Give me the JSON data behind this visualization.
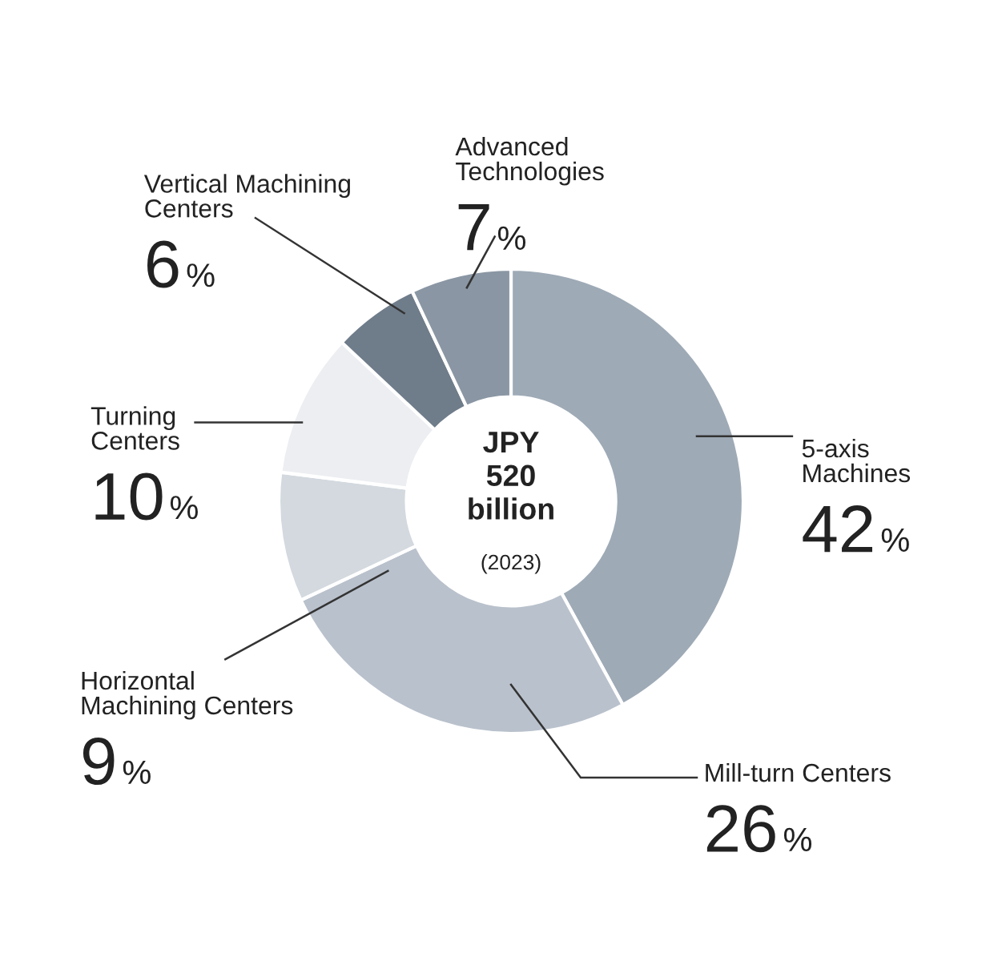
{
  "chart_data": {
    "type": "donut",
    "title": "JPY\n520\nbillion",
    "subtitle": "(2023)",
    "categories": [
      "5-axis\nMachines",
      "Mill-turn Centers",
      "Horizontal\nMachining Centers",
      "Turning\nCenters",
      "Vertical Machining\nCenters",
      "Advanced\nTechnologies"
    ],
    "values": [
      42,
      26,
      9,
      10,
      6,
      7
    ],
    "value_labels": [
      "42%",
      "26%",
      "9%",
      "10%",
      "6%",
      "7%"
    ],
    "colors": [
      "#9eaab6",
      "#b9c1cc",
      "#d3d9df",
      "#eceef2",
      "#6f7c8a",
      "#8a96a3"
    ]
  }
}
